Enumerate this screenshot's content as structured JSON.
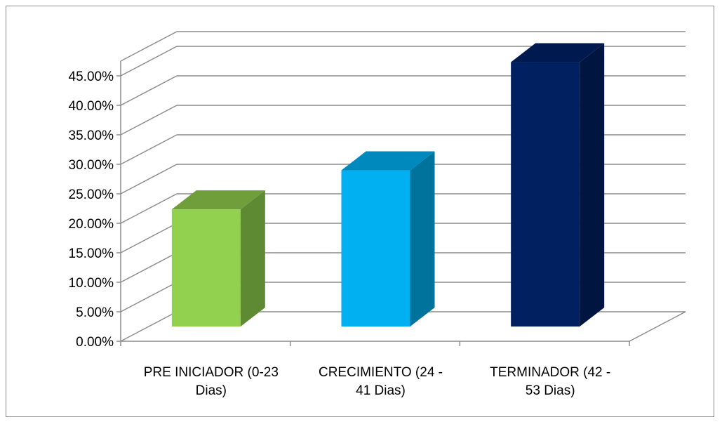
{
  "chart_data": {
    "type": "bar",
    "style": "3d-column",
    "categories": [
      [
        "PRE INICIADOR (0-23",
        "Dias)"
      ],
      [
        "CRECIMIENTO (24 -",
        "41 Dias)"
      ],
      [
        "TERMINADOR (42 -",
        "53 Dias)"
      ]
    ],
    "values": [
      19.5,
      26.0,
      44.0
    ],
    "ylim": [
      0,
      45
    ],
    "yticks": [
      "0.00%",
      "5.00%",
      "10.00%",
      "15.00%",
      "20.00%",
      "25.00%",
      "30.00%",
      "35.00%",
      "40.00%",
      "45.00%"
    ],
    "title": "",
    "xlabel": "",
    "ylabel": "",
    "grid": true,
    "legend": "none",
    "colors": [
      {
        "front": "#92d050",
        "side": "#5e8a34",
        "top": "#6f9e3a"
      },
      {
        "front": "#00b0f0",
        "side": "#00739c",
        "top": "#0089bd"
      },
      {
        "front": "#002060",
        "side": "#001540",
        "top": "#001a4f"
      }
    ]
  }
}
